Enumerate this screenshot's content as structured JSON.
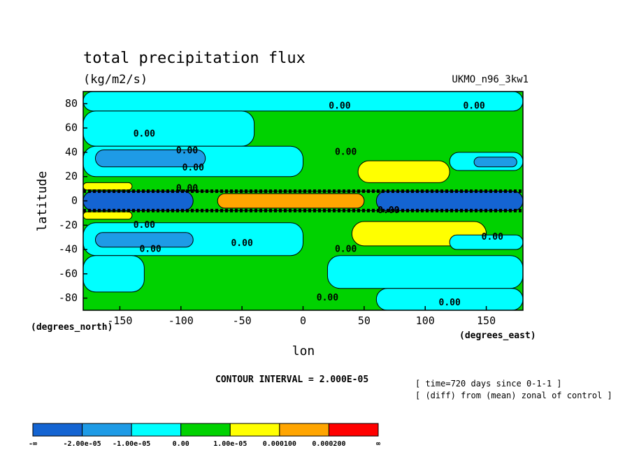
{
  "chart_data": {
    "type": "heatmap",
    "title": "total precipitation flux",
    "units": "(kg/m2/s)",
    "dataset": "UKMO_n96_3kw1",
    "xlabel": "lon",
    "ylabel": "latitude",
    "x_units_label": "(degrees_east)",
    "y_units_label": "(degrees_north)",
    "xlim": [
      -180,
      180
    ],
    "ylim": [
      -90,
      90
    ],
    "x_ticks": [
      -150,
      -100,
      -50,
      0,
      50,
      100,
      150
    ],
    "y_ticks": [
      80,
      60,
      40,
      20,
      0,
      -20,
      -40,
      -60,
      -80
    ],
    "contour_interval": "CONTOUR INTERVAL = 2.000E-05",
    "notes": [
      "[ time=720 days since 0-1-1 ]",
      "[ (diff) from (mean) zonal of control ]"
    ],
    "contour_labels": [
      "0.00"
    ],
    "colorbar": {
      "colors": [
        "#1464d2",
        "#1e9be6",
        "#00ffff",
        "#00d200",
        "#ffff00",
        "#ffa500",
        "#ff0000"
      ],
      "labels": [
        "-∞",
        "-2.00e-05",
        "-1.00e-05",
        "0.00",
        "1.00e-05",
        "0.000100",
        "0.000200",
        "∞"
      ]
    },
    "regions": [
      {
        "level": 3,
        "lon": [
          -180,
          180
        ],
        "lat": [
          -90,
          90
        ]
      },
      {
        "level": 2,
        "lon": [
          -180,
          180
        ],
        "lat": [
          74,
          90
        ]
      },
      {
        "level": 2,
        "lon": [
          -180,
          -40
        ],
        "lat": [
          45,
          74
        ]
      },
      {
        "level": 2,
        "lon": [
          -180,
          0
        ],
        "lat": [
          20,
          45
        ]
      },
      {
        "level": 1,
        "lon": [
          -170,
          -80
        ],
        "lat": [
          28,
          42
        ]
      },
      {
        "level": 2,
        "lon": [
          120,
          180
        ],
        "lat": [
          25,
          40
        ]
      },
      {
        "level": 1,
        "lon": [
          140,
          175
        ],
        "lat": [
          28,
          36
        ]
      },
      {
        "level": 4,
        "lon": [
          45,
          120
        ],
        "lat": [
          15,
          33
        ]
      },
      {
        "level": 4,
        "lon": [
          -180,
          -140
        ],
        "lat": [
          9,
          15
        ]
      },
      {
        "level": 3,
        "lon": [
          -180,
          180
        ],
        "lat": [
          -8,
          8
        ]
      },
      {
        "level": 0,
        "lon": [
          -180,
          -90
        ],
        "lat": [
          -8,
          8
        ]
      },
      {
        "level": 0,
        "lon": [
          60,
          180
        ],
        "lat": [
          -8,
          8
        ]
      },
      {
        "level": 5,
        "lon": [
          -70,
          50
        ],
        "lat": [
          -6,
          6
        ]
      },
      {
        "level": 4,
        "lon": [
          -180,
          -140
        ],
        "lat": [
          -15,
          -9
        ]
      },
      {
        "level": 2,
        "lon": [
          -180,
          0
        ],
        "lat": [
          -45,
          -18
        ]
      },
      {
        "level": 1,
        "lon": [
          -170,
          -90
        ],
        "lat": [
          -38,
          -26
        ]
      },
      {
        "level": 4,
        "lon": [
          40,
          150
        ],
        "lat": [
          -37,
          -17
        ]
      },
      {
        "level": 2,
        "lon": [
          120,
          180
        ],
        "lat": [
          -40,
          -28
        ]
      },
      {
        "level": 2,
        "lon": [
          -180,
          -130
        ],
        "lat": [
          -75,
          -45
        ]
      },
      {
        "level": 2,
        "lon": [
          20,
          180
        ],
        "lat": [
          -72,
          -45
        ]
      },
      {
        "level": 2,
        "lon": [
          60,
          180
        ],
        "lat": [
          -90,
          -72
        ]
      }
    ]
  }
}
